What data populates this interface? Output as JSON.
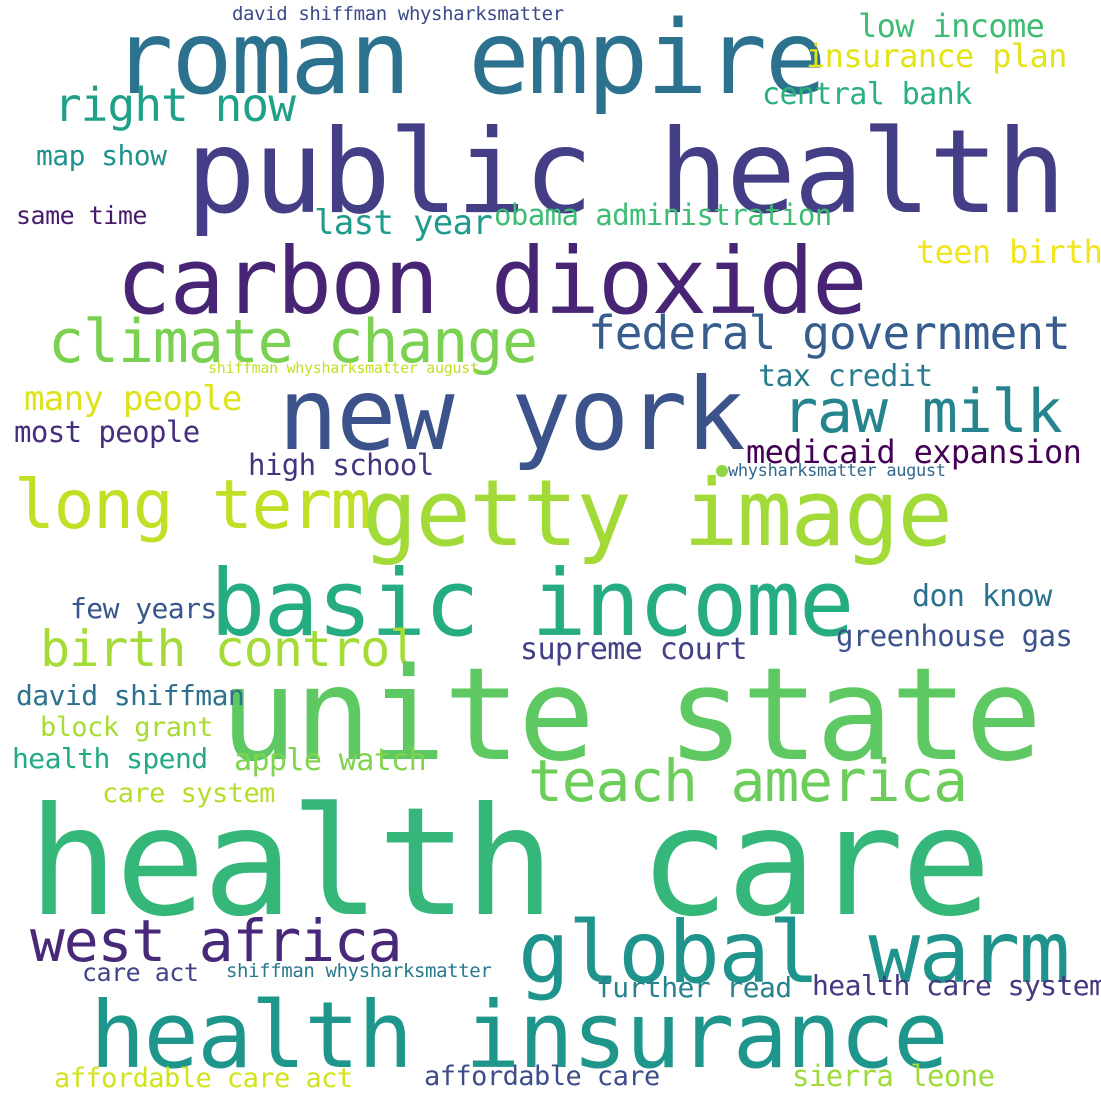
{
  "words": [
    {
      "text": "david shiffman whysharksmatter",
      "color": "#3d4a89"
    },
    {
      "text": "roman empire",
      "color": "#2c728e"
    },
    {
      "text": "low income",
      "color": "#3fbc73"
    },
    {
      "text": "insurance plan",
      "color": "#e3e418"
    },
    {
      "text": "public health",
      "color": "#433e85"
    },
    {
      "text": "right now",
      "color": "#1fa187"
    },
    {
      "text": "central bank",
      "color": "#2ab07f"
    },
    {
      "text": "map show",
      "color": "#21918c"
    },
    {
      "text": "same time",
      "color": "#481a6c"
    },
    {
      "text": "last year",
      "color": "#1e9b8a"
    },
    {
      "text": "obama administration",
      "color": "#3dbc74"
    },
    {
      "text": "teen birth",
      "color": "#f1e51d"
    },
    {
      "text": "carbon dioxide",
      "color": "#482475"
    },
    {
      "text": "climate change",
      "color": "#7ad151"
    },
    {
      "text": "federal government",
      "color": "#365d8d"
    },
    {
      "text": "shiffman whysharksmatter august",
      "color": "#c2df23"
    },
    {
      "text": "tax credit",
      "color": "#287c8e"
    },
    {
      "text": "many people",
      "color": "#dde318"
    },
    {
      "text": "new york",
      "color": "#3b528b"
    },
    {
      "text": "raw milk",
      "color": "#25848e"
    },
    {
      "text": "most people",
      "color": "#472d7b"
    },
    {
      "text": "medicaid expansion",
      "color": "#440154"
    },
    {
      "text": "high school",
      "color": "#46337e"
    },
    {
      "text": "whysharksmatter august",
      "color": "#31688e"
    },
    {
      "text": "long term",
      "color": "#c0df25"
    },
    {
      "text": "getty image",
      "color": "#a2da37"
    },
    {
      "text": "basic income",
      "color": "#25ac82"
    },
    {
      "text": "don know",
      "color": "#2d708e"
    },
    {
      "text": "few years",
      "color": "#39568c"
    },
    {
      "text": "birth control",
      "color": "#a5db36"
    },
    {
      "text": "greenhouse gas",
      "color": "#3b528b"
    },
    {
      "text": "supreme court",
      "color": "#424086"
    },
    {
      "text": "unite state",
      "color": "#5ec962"
    },
    {
      "text": "david shiffman",
      "color": "#2d718e"
    },
    {
      "text": "block grant",
      "color": "#a8db34"
    },
    {
      "text": "health spend",
      "color": "#23a983"
    },
    {
      "text": "apple watch",
      "color": "#7fd34e"
    },
    {
      "text": "teach america",
      "color": "#6ccd5a"
    },
    {
      "text": "care system",
      "color": "#b5de2b"
    },
    {
      "text": "health care",
      "color": "#35b779"
    },
    {
      "text": "west africa",
      "color": "#482878"
    },
    {
      "text": "global warm",
      "color": "#1f948c"
    },
    {
      "text": "care act",
      "color": "#414487"
    },
    {
      "text": "shiffman whysharksmatter",
      "color": "#2a788e"
    },
    {
      "text": "further read",
      "color": "#26828e"
    },
    {
      "text": "health care system",
      "color": "#453781"
    },
    {
      "text": "health insurance",
      "color": "#1f968b"
    },
    {
      "text": "affordable care act",
      "color": "#d2e21b"
    },
    {
      "text": "affordable care",
      "color": "#3e4c8a"
    },
    {
      "text": "sierra leone",
      "color": "#9fda3a"
    }
  ],
  "dot_color": "#8ed645"
}
